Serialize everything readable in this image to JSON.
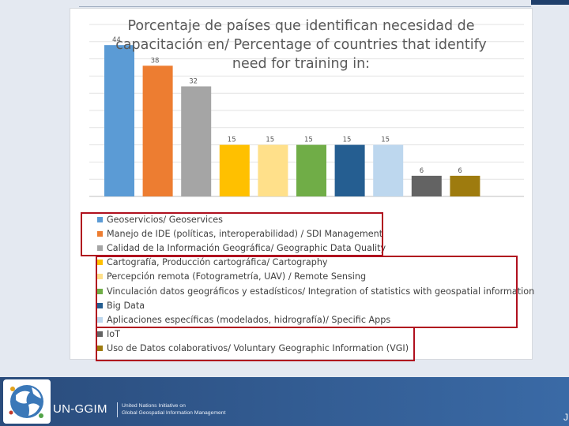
{
  "chart_data": {
    "type": "bar",
    "title_lines": [
      "Porcentaje de países que identifican necesidad de",
      "capacitación en/ Percentage of countries that identify",
      "need for training in:"
    ],
    "categories": [
      "Geoservicios/ Geoservices",
      "Manejo de IDE (políticas, interoperabilidad) / SDI Management",
      "Calidad de la Información Geográfica/ Geographic Data Quality",
      "Cartografía, Producción cartográfica/ Cartography",
      "Percepción remota (Fotogrametría, UAV) / Remote Sensing",
      "Vinculación datos geográficos y estadísticos/ Integration of statistics with geospatial information",
      "Big Data",
      "Aplicaciones específicas (modelados, hidrografía)/ Specific Apps",
      "IoT",
      "Uso de Datos colaborativos/ Voluntary Geographic Information (VGI)"
    ],
    "values": [
      44,
      38,
      32,
      15,
      15,
      15,
      15,
      15,
      6,
      6
    ],
    "colors": [
      "#5b9bd5",
      "#ed7d31",
      "#a5a5a5",
      "#ffc000",
      "#ffe08a",
      "#70ad47",
      "#255e91",
      "#bdd7ee",
      "#636363",
      "#9e7b0e"
    ],
    "ylim": [
      0,
      50
    ],
    "grid": true,
    "legend_position": "bottom",
    "data_labels": true
  },
  "footer": {
    "brand": "UN-GGIM",
    "subtitle_line1": "United Nations Initiative on",
    "subtitle_line2": "Global Geospatial Information Management",
    "logo_icon": "un-ggim-globe-logo",
    "edge_glyph": "J",
    "background_color": "#2a4c7c"
  },
  "highlight_color": "#b0101e"
}
